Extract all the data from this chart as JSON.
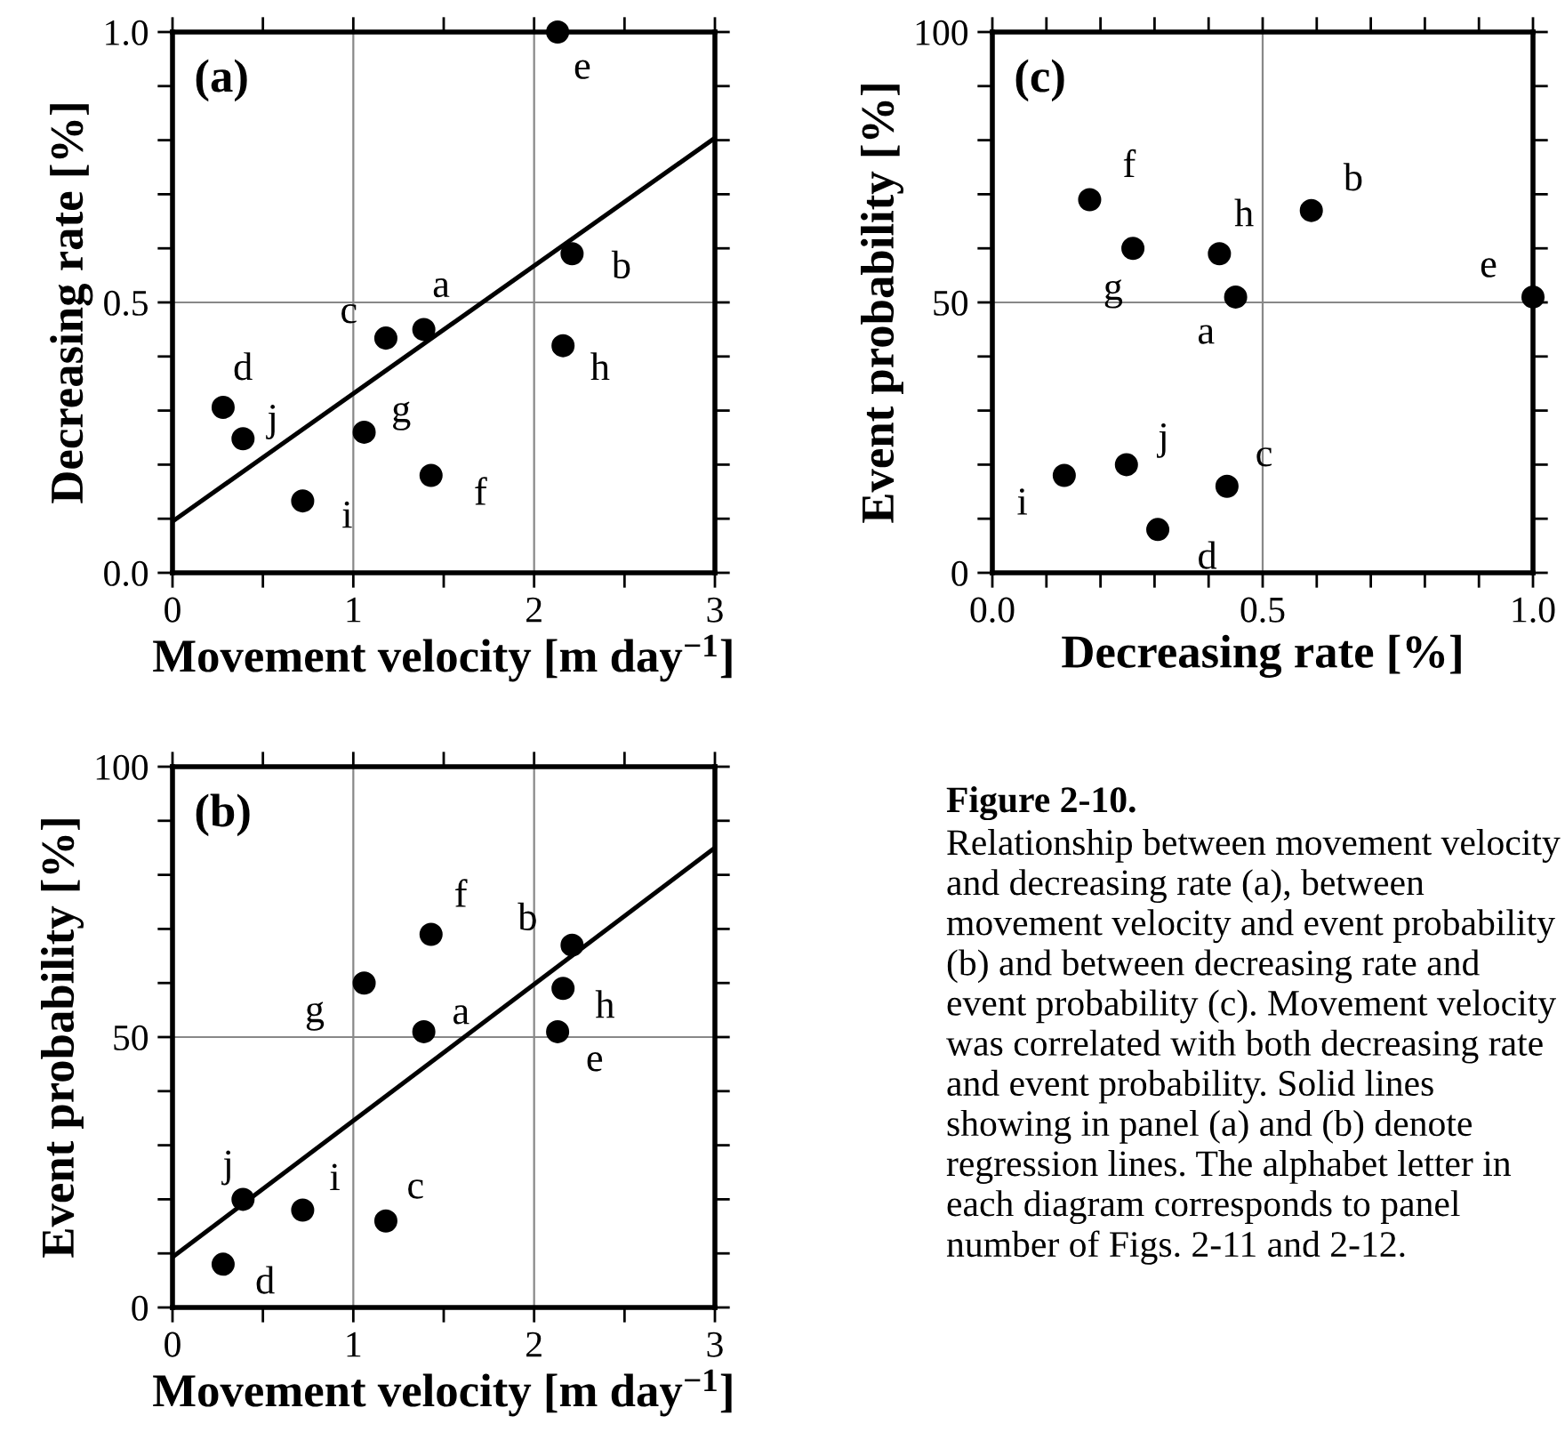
{
  "chart_data": [
    {
      "type": "scatter",
      "title": "(a)",
      "xlabel": "Movement velocity [m day$^{−1}$]",
      "ylabel": "Decreasing rate [%]",
      "xlim": [
        0,
        3
      ],
      "ylim": [
        0,
        1
      ],
      "xticks": [
        0,
        {
          "value": 0.5,
          "label": null
        },
        1,
        {
          "value": 1.5,
          "label": null
        },
        2,
        {
          "value": 2.5,
          "label": null
        },
        3
      ],
      "yticks": [
        {
          "value": 0,
          "label": "0.0"
        },
        {
          "value": 0.1,
          "label": null
        },
        {
          "value": 0.2,
          "label": null
        },
        {
          "value": 0.3,
          "label": null
        },
        {
          "value": 0.4,
          "label": null
        },
        0.5,
        {
          "value": 0.6,
          "label": null
        },
        {
          "value": 0.7,
          "label": null
        },
        {
          "value": 0.8,
          "label": null
        },
        {
          "value": 0.9,
          "label": null
        },
        {
          "value": 1,
          "label": "1.0"
        }
      ],
      "grid": true,
      "series": [
        {
          "type": "scatter",
          "marker": "circle",
          "color": "#000000",
          "x": [
            1.39,
            2.21,
            1.18,
            0.28,
            2.13,
            1.43,
            1.06,
            2.16,
            0.72,
            0.39
          ],
          "values": [
            0.45,
            0.59,
            0.434,
            0.306,
            1.0,
            0.18,
            0.26,
            0.42,
            0.133,
            0.248
          ]
        },
        {
          "type": "line",
          "marker": "none",
          "color": "#000000",
          "x": [
            0,
            3
          ],
          "values": [
            0.095,
            0.804
          ]
        }
      ],
      "annotations": [
        {
          "text": "a",
          "x": 1.39,
          "y": 0.45
        },
        {
          "text": "b",
          "x": 2.21,
          "y": 0.59
        },
        {
          "text": "c",
          "x": 1.18,
          "y": 0.434
        },
        {
          "text": "d",
          "x": 0.28,
          "y": 0.306
        },
        {
          "text": "e",
          "x": 2.13,
          "y": 1.0
        },
        {
          "text": "f",
          "x": 1.43,
          "y": 0.18
        },
        {
          "text": "g",
          "x": 1.06,
          "y": 0.26
        },
        {
          "text": "h",
          "x": 2.16,
          "y": 0.42
        },
        {
          "text": "i",
          "x": 0.72,
          "y": 0.133
        },
        {
          "text": "j",
          "x": 0.39,
          "y": 0.248
        }
      ]
    },
    {
      "type": "scatter",
      "title": "(c)",
      "xlabel": "Decreasing rate [%]",
      "ylabel": "Event probability [%]",
      "xlim": [
        0,
        1
      ],
      "ylim": [
        0,
        100
      ],
      "xticks": [
        {
          "value": 0,
          "label": "0.0"
        },
        {
          "value": 0.1,
          "label": null
        },
        {
          "value": 0.2,
          "label": null
        },
        {
          "value": 0.3,
          "label": null
        },
        {
          "value": 0.4,
          "label": null
        },
        0.5,
        {
          "value": 0.6,
          "label": null
        },
        {
          "value": 0.7,
          "label": null
        },
        {
          "value": 0.8,
          "label": null
        },
        {
          "value": 0.9,
          "label": null
        },
        {
          "value": 1,
          "label": "1.0"
        }
      ],
      "yticks": [
        0,
        {
          "value": 10,
          "label": null
        },
        {
          "value": 20,
          "label": null
        },
        {
          "value": 30,
          "label": null
        },
        {
          "value": 40,
          "label": null
        },
        50,
        {
          "value": 60,
          "label": null
        },
        {
          "value": 70,
          "label": null
        },
        {
          "value": 80,
          "label": null
        },
        {
          "value": 90,
          "label": null
        },
        100
      ],
      "grid": true,
      "series": [
        {
          "type": "scatter",
          "marker": "circle",
          "color": "#000000",
          "x": [
            0.45,
            0.59,
            0.434,
            0.306,
            1.0,
            0.18,
            0.26,
            0.42,
            0.133,
            0.248
          ],
          "values": [
            51,
            67,
            16,
            8,
            51,
            69,
            60,
            59,
            18,
            20
          ]
        }
      ],
      "annotations": [
        {
          "text": "a",
          "x": 0.45,
          "y": 51
        },
        {
          "text": "b",
          "x": 0.59,
          "y": 67
        },
        {
          "text": "c",
          "x": 0.434,
          "y": 16
        },
        {
          "text": "d",
          "x": 0.306,
          "y": 8
        },
        {
          "text": "e",
          "x": 1.0,
          "y": 51
        },
        {
          "text": "f",
          "x": 0.18,
          "y": 69
        },
        {
          "text": "g",
          "x": 0.26,
          "y": 60
        },
        {
          "text": "h",
          "x": 0.42,
          "y": 59
        },
        {
          "text": "i",
          "x": 0.133,
          "y": 18
        },
        {
          "text": "j",
          "x": 0.248,
          "y": 20
        }
      ]
    },
    {
      "type": "scatter",
      "title": "(b)",
      "xlabel": "Movement velocity [m day$^{−1}$]",
      "ylabel": "Event probability [%]",
      "xlim": [
        0,
        3
      ],
      "ylim": [
        0,
        100
      ],
      "xticks": [
        0,
        {
          "value": 0.5,
          "label": null
        },
        1,
        {
          "value": 1.5,
          "label": null
        },
        2,
        {
          "value": 2.5,
          "label": null
        },
        3
      ],
      "yticks": [
        0,
        {
          "value": 10,
          "label": null
        },
        {
          "value": 20,
          "label": null
        },
        {
          "value": 30,
          "label": null
        },
        {
          "value": 40,
          "label": null
        },
        50,
        {
          "value": 60,
          "label": null
        },
        {
          "value": 70,
          "label": null
        },
        {
          "value": 80,
          "label": null
        },
        {
          "value": 90,
          "label": null
        },
        100
      ],
      "grid": true,
      "series": [
        {
          "type": "scatter",
          "marker": "circle",
          "color": "#000000",
          "x": [
            1.39,
            2.21,
            1.18,
            0.28,
            2.13,
            1.43,
            1.06,
            2.16,
            0.72,
            0.39
          ],
          "values": [
            51,
            67,
            16,
            8,
            51,
            69,
            60,
            59,
            18,
            20
          ]
        },
        {
          "type": "line",
          "marker": "none",
          "color": "#000000",
          "x": [
            0,
            3
          ],
          "values": [
            9.3,
            85
          ]
        }
      ],
      "annotations": [
        {
          "text": "a",
          "x": 1.39,
          "y": 51
        },
        {
          "text": "b",
          "x": 2.21,
          "y": 67
        },
        {
          "text": "c",
          "x": 1.18,
          "y": 16
        },
        {
          "text": "d",
          "x": 0.28,
          "y": 8
        },
        {
          "text": "e",
          "x": 2.13,
          "y": 51
        },
        {
          "text": "f",
          "x": 1.43,
          "y": 69
        },
        {
          "text": "g",
          "x": 1.06,
          "y": 60
        },
        {
          "text": "h",
          "x": 2.16,
          "y": 59
        },
        {
          "text": "i",
          "x": 0.72,
          "y": 18
        },
        {
          "text": "j",
          "x": 0.39,
          "y": 20
        }
      ]
    },
    {
      "type": "other",
      "annotations": [
        "Figure 2-10.",
        "Relationship between movement velocity and decreasing rate (a), between movement velocity and event probability (b) and between decreasing rate and event probability (c). Movement velocity was correlated with both decreasing rate and event probability. Solid lines showing in panel (a) and (b) denote regression lines. The alphabet letter in each diagram corresponds to panel number of Figs. 2-11 and 2-12."
      ]
    }
  ]
}
